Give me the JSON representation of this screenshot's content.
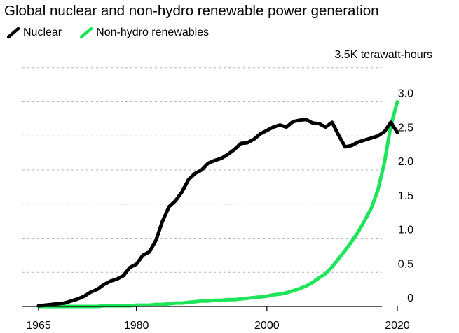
{
  "title": "Global nuclear and non-hydro renewable power generation",
  "unit_label": "3.5K terawatt-hours",
  "colors": {
    "nuclear": "#000000",
    "renewables": "#1ee45a",
    "grid": "#b3b3b3"
  },
  "chart_data": {
    "type": "line",
    "title": "Global nuclear and non-hydro renewable power generation",
    "ylabel": "3.5K terawatt-hours",
    "xlim": [
      1965,
      2020
    ],
    "ylim": [
      0,
      3.5
    ],
    "x_ticks": [
      1965,
      1980,
      2000,
      2020
    ],
    "y_ticks": [
      0,
      0.5,
      1.0,
      1.5,
      2.0,
      2.5,
      3.0
    ],
    "y_tick_labels": [
      "0",
      "0.5",
      "1.0",
      "1.5",
      "2.0",
      "2.5",
      "3.0"
    ],
    "x": [
      1965,
      1966,
      1967,
      1968,
      1969,
      1970,
      1971,
      1972,
      1973,
      1974,
      1975,
      1976,
      1977,
      1978,
      1979,
      1980,
      1981,
      1982,
      1983,
      1984,
      1985,
      1986,
      1987,
      1988,
      1989,
      1990,
      1991,
      1992,
      1993,
      1994,
      1995,
      1996,
      1997,
      1998,
      1999,
      2000,
      2001,
      2002,
      2003,
      2004,
      2005,
      2006,
      2007,
      2008,
      2009,
      2010,
      2011,
      2012,
      2013,
      2014,
      2015,
      2016,
      2017,
      2018,
      2019,
      2020
    ],
    "series": [
      {
        "name": "Nuclear",
        "values": [
          0.01,
          0.02,
          0.03,
          0.04,
          0.05,
          0.08,
          0.11,
          0.15,
          0.21,
          0.25,
          0.32,
          0.37,
          0.4,
          0.45,
          0.57,
          0.62,
          0.75,
          0.8,
          0.97,
          1.25,
          1.46,
          1.55,
          1.68,
          1.86,
          1.95,
          2.0,
          2.1,
          2.14,
          2.17,
          2.23,
          2.3,
          2.39,
          2.4,
          2.45,
          2.53,
          2.58,
          2.63,
          2.66,
          2.63,
          2.71,
          2.73,
          2.74,
          2.69,
          2.68,
          2.63,
          2.7,
          2.51,
          2.34,
          2.36,
          2.41,
          2.44,
          2.47,
          2.5,
          2.56,
          2.7,
          2.55
        ]
      },
      {
        "name": "Non-hydro renewables",
        "values": [
          0.0,
          0.0,
          0.0,
          0.0,
          0.0,
          0.0,
          0.0,
          0.0,
          0.0,
          0.0,
          0.01,
          0.01,
          0.01,
          0.01,
          0.01,
          0.02,
          0.02,
          0.02,
          0.03,
          0.03,
          0.04,
          0.05,
          0.05,
          0.06,
          0.07,
          0.08,
          0.08,
          0.09,
          0.09,
          0.1,
          0.1,
          0.11,
          0.12,
          0.13,
          0.14,
          0.15,
          0.17,
          0.18,
          0.2,
          0.23,
          0.26,
          0.3,
          0.35,
          0.42,
          0.48,
          0.58,
          0.7,
          0.82,
          0.95,
          1.09,
          1.26,
          1.44,
          1.7,
          2.1,
          2.65,
          3.0
        ]
      }
    ]
  }
}
